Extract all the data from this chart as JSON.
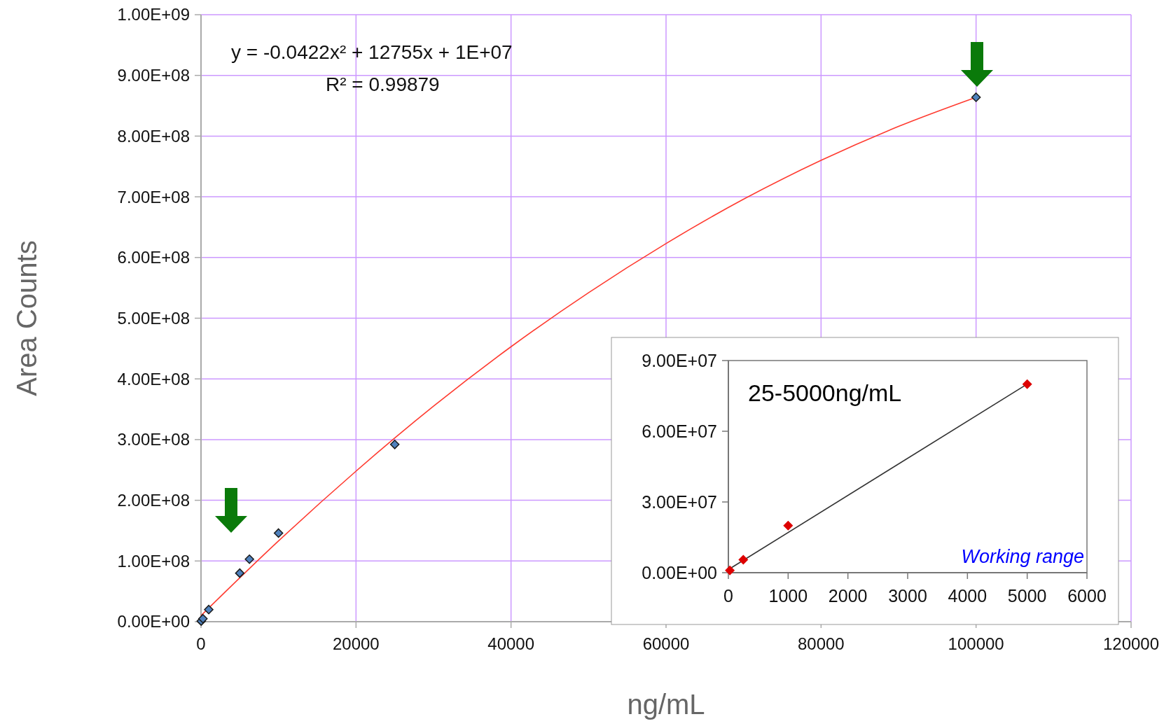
{
  "chart_data": [
    {
      "type": "scatter",
      "xlabel": "ng/mL",
      "ylabel": "Area Counts",
      "xlim": [
        0,
        120000
      ],
      "ylim": [
        0,
        1000000000
      ],
      "xticks": [
        0,
        20000,
        40000,
        60000,
        80000,
        100000,
        120000
      ],
      "yticks": [
        {
          "value": 0,
          "label": "0.00E+00"
        },
        {
          "value": 100000000,
          "label": "1.00E+08"
        },
        {
          "value": 200000000,
          "label": "2.00E+08"
        },
        {
          "value": 300000000,
          "label": "3.00E+08"
        },
        {
          "value": 400000000,
          "label": "4.00E+08"
        },
        {
          "value": 500000000,
          "label": "5.00E+08"
        },
        {
          "value": 600000000,
          "label": "6.00E+08"
        },
        {
          "value": 700000000,
          "label": "7.00E+08"
        },
        {
          "value": 800000000,
          "label": "8.00E+08"
        },
        {
          "value": 900000000,
          "label": "9.00E+08"
        },
        {
          "value": 1000000000,
          "label": "1.00E+09"
        }
      ],
      "grid": true,
      "series": [
        {
          "type": "line",
          "color": "#ff3b30",
          "x": [
            0,
            10000,
            20000,
            30000,
            40000,
            50000,
            60000,
            70000,
            80000,
            90000,
            100000
          ],
          "values": [
            10000000,
            133000000,
            248000000,
            355000000,
            453000000,
            542000000,
            623000000,
            696000000,
            760000000,
            816000000,
            864000000
          ]
        },
        {
          "marker": "diamond",
          "color": "#4f81bd",
          "x": [
            25,
            250,
            1000,
            5000,
            6250,
            10000,
            25000,
            100000
          ],
          "values": [
            1000000,
            5000000,
            20000000,
            80000000,
            103000000,
            146000000,
            292000000,
            864000000
          ]
        }
      ],
      "annotations": [
        "y = -0.0422x² + 12755x + 1E+07",
        "R² = 0.99879"
      ]
    },
    {
      "type": "scatter",
      "xlim": [
        0,
        6000
      ],
      "ylim": [
        0,
        90000000
      ],
      "xticks": [
        0,
        1000,
        2000,
        3000,
        4000,
        5000,
        6000
      ],
      "yticks": [
        {
          "value": 0,
          "label": "0.00E+00"
        },
        {
          "value": 30000000,
          "label": "3.00E+07"
        },
        {
          "value": 60000000,
          "label": "6.00E+07"
        },
        {
          "value": 90000000,
          "label": "9.00E+07"
        }
      ],
      "grid": false,
      "series": [
        {
          "type": "line",
          "color": "#333333",
          "x": [
            25,
            5000
          ],
          "values": [
            1700000,
            80000000
          ]
        },
        {
          "marker": "diamond",
          "color": "#dd0000",
          "x": [
            25,
            250,
            1000,
            5000
          ],
          "values": [
            1000000,
            5500000,
            20000000,
            80000000
          ]
        }
      ],
      "annotations": [
        "25-5000ng/mL",
        "Working range"
      ]
    }
  ]
}
